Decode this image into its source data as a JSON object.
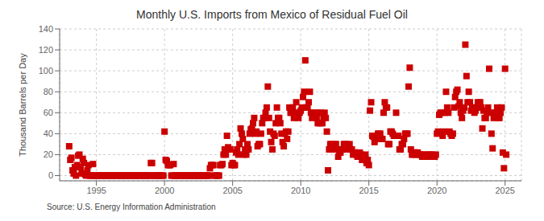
{
  "chart_data": {
    "type": "scatter",
    "title": "Monthly U.S. Imports from Mexico of Residual Fuel Oil",
    "ylabel": "Thousand Barrels per Day",
    "annotations": [
      "Source: U.S. Energy Information Administration"
    ],
    "color": "#cc0000",
    "marker": "square",
    "grid": true,
    "xlim": [
      1992.3,
      2026.2
    ],
    "xticks": [
      1995,
      2000,
      2005,
      2010,
      2015,
      2020,
      2025
    ],
    "ylim": [
      -5,
      140
    ],
    "yticks": [
      0,
      20,
      40,
      60,
      80,
      100,
      120,
      140
    ],
    "x": [
      1993.0,
      1993.083,
      1993.167,
      1993.25,
      1993.333,
      1993.417,
      1993.5,
      1993.583,
      1993.667,
      1993.75,
      1993.833,
      1993.917,
      1994.0,
      1994.083,
      1994.167,
      1994.25,
      1994.333,
      1994.417,
      1994.5,
      1994.583,
      1994.667,
      1994.75,
      1994.833,
      1994.917,
      1995.0,
      1995.083,
      1995.167,
      1995.25,
      1995.333,
      1995.417,
      1995.5,
      1995.583,
      1995.667,
      1995.75,
      1995.833,
      1995.917,
      1996.0,
      1996.083,
      1996.167,
      1996.25,
      1996.333,
      1996.417,
      1996.5,
      1996.583,
      1996.667,
      1996.75,
      1996.833,
      1996.917,
      1997.0,
      1997.083,
      1997.167,
      1997.25,
      1997.333,
      1997.417,
      1997.5,
      1997.583,
      1997.667,
      1997.75,
      1997.833,
      1997.917,
      1998.0,
      1998.083,
      1998.167,
      1998.25,
      1998.333,
      1998.417,
      1998.5,
      1998.583,
      1998.667,
      1998.75,
      1998.833,
      1998.917,
      1999.0,
      1999.083,
      1999.167,
      1999.25,
      1999.333,
      1999.417,
      1999.5,
      1999.583,
      1999.667,
      1999.75,
      1999.833,
      1999.917,
      2000.0,
      2000.083,
      2000.167,
      2000.25,
      2000.333,
      2000.417,
      2000.5,
      2000.583,
      2000.667,
      2000.75,
      2000.833,
      2000.917,
      2001.0,
      2001.083,
      2001.167,
      2001.25,
      2001.333,
      2001.417,
      2001.5,
      2001.583,
      2001.667,
      2001.75,
      2001.833,
      2001.917,
      2002.0,
      2002.083,
      2002.167,
      2002.25,
      2002.333,
      2002.417,
      2002.5,
      2002.583,
      2002.667,
      2002.75,
      2002.833,
      2002.917,
      2003.0,
      2003.083,
      2003.167,
      2003.25,
      2003.333,
      2003.417,
      2003.5,
      2003.583,
      2003.667,
      2003.75,
      2003.833,
      2003.917,
      2004.0,
      2004.083,
      2004.167,
      2004.25,
      2004.333,
      2004.417,
      2004.5,
      2004.583,
      2004.667,
      2004.75,
      2004.833,
      2004.917,
      2005.0,
      2005.083,
      2005.167,
      2005.25,
      2005.333,
      2005.417,
      2005.5,
      2005.583,
      2005.667,
      2005.75,
      2005.833,
      2005.917,
      2006.0,
      2006.083,
      2006.167,
      2006.25,
      2006.333,
      2006.417,
      2006.5,
      2006.583,
      2006.667,
      2006.75,
      2006.833,
      2006.917,
      2007.0,
      2007.083,
      2007.167,
      2007.25,
      2007.333,
      2007.417,
      2007.5,
      2007.583,
      2007.667,
      2007.75,
      2007.833,
      2007.917,
      2008.0,
      2008.083,
      2008.167,
      2008.25,
      2008.333,
      2008.417,
      2008.5,
      2008.583,
      2008.667,
      2008.75,
      2008.833,
      2008.917,
      2009.0,
      2009.083,
      2009.167,
      2009.25,
      2009.333,
      2009.417,
      2009.5,
      2009.583,
      2009.667,
      2009.75,
      2009.833,
      2009.917,
      2010.0,
      2010.083,
      2010.167,
      2010.25,
      2010.333,
      2010.417,
      2010.5,
      2010.583,
      2010.667,
      2010.75,
      2010.833,
      2010.917,
      2011.0,
      2011.083,
      2011.167,
      2011.25,
      2011.333,
      2011.417,
      2011.5,
      2011.583,
      2011.667,
      2011.75,
      2011.833,
      2011.917,
      2012.0,
      2012.083,
      2012.167,
      2012.25,
      2012.333,
      2012.417,
      2012.5,
      2012.583,
      2012.667,
      2012.75,
      2012.833,
      2012.917,
      2013.0,
      2013.083,
      2013.167,
      2013.25,
      2013.333,
      2013.417,
      2013.5,
      2013.583,
      2013.667,
      2013.75,
      2013.833,
      2013.917,
      2014.0,
      2014.083,
      2014.167,
      2014.25,
      2014.333,
      2014.417,
      2014.5,
      2014.583,
      2014.667,
      2014.75,
      2014.833,
      2014.917,
      2015.0,
      2015.083,
      2015.167,
      2015.25,
      2015.333,
      2015.417,
      2015.5,
      2015.583,
      2015.667,
      2015.75,
      2015.833,
      2015.917,
      2016.0,
      2016.083,
      2016.167,
      2016.25,
      2016.333,
      2016.417,
      2016.5,
      2016.583,
      2016.667,
      2016.75,
      2016.833,
      2016.917,
      2017.0,
      2017.083,
      2017.167,
      2017.25,
      2017.333,
      2017.417,
      2017.5,
      2017.583,
      2017.667,
      2017.75,
      2017.833,
      2017.917,
      2018.0,
      2018.083,
      2018.167,
      2018.25,
      2018.333,
      2018.417,
      2018.5,
      2018.583,
      2018.667,
      2018.75,
      2018.833,
      2018.917,
      2019.0,
      2019.083,
      2019.167,
      2019.25,
      2019.333,
      2019.417,
      2019.5,
      2019.583,
      2019.667,
      2019.75,
      2019.833,
      2019.917,
      2020.0,
      2020.083,
      2020.167,
      2020.25,
      2020.333,
      2020.417,
      2020.5,
      2020.583,
      2020.667,
      2020.75,
      2020.833,
      2020.917,
      2021.0,
      2021.083,
      2021.167,
      2021.25,
      2021.333,
      2021.417,
      2021.5,
      2021.583,
      2021.667,
      2021.75,
      2021.833,
      2021.917,
      2022.0,
      2022.083,
      2022.167,
      2022.25,
      2022.333,
      2022.417,
      2022.5,
      2022.583,
      2022.667,
      2022.75,
      2022.833,
      2022.917,
      2023.0,
      2023.083,
      2023.167,
      2023.25,
      2023.333,
      2023.417,
      2023.5,
      2023.583,
      2023.667,
      2023.75,
      2023.833,
      2023.917,
      2024.0,
      2024.083,
      2024.167,
      2024.25,
      2024.333,
      2024.417,
      2024.5,
      2024.583,
      2024.667,
      2024.75,
      2024.833,
      2024.917,
      2025.0,
      2025.083
    ],
    "values": [
      28,
      15,
      17,
      5,
      2,
      8,
      0,
      10,
      19,
      20,
      8,
      2,
      16,
      12,
      1,
      0,
      5,
      10,
      0,
      0,
      0,
      11,
      0,
      0,
      0,
      0,
      0,
      0,
      0,
      0,
      0,
      0,
      0,
      0,
      0,
      0,
      0,
      0,
      0,
      0,
      0,
      0,
      0,
      0,
      0,
      0,
      0,
      0,
      0,
      0,
      0,
      0,
      0,
      0,
      0,
      0,
      0,
      0,
      0,
      0,
      0,
      0,
      0,
      0,
      0,
      0,
      0,
      0,
      0,
      0,
      0,
      0,
      12,
      12,
      0,
      0,
      0,
      0,
      0,
      0,
      0,
      0,
      0,
      0,
      42,
      15,
      14,
      10,
      10,
      10,
      0,
      0,
      11,
      0,
      0,
      0,
      0,
      0,
      0,
      0,
      0,
      0,
      0,
      0,
      0,
      0,
      0,
      0,
      0,
      0,
      0,
      0,
      0,
      0,
      0,
      0,
      0,
      0,
      0,
      0,
      0,
      0,
      0,
      0,
      7,
      10,
      10,
      10,
      0,
      0,
      0,
      0,
      0,
      10,
      10,
      11,
      20,
      25,
      20,
      38,
      27,
      25,
      25,
      10,
      12,
      10,
      10,
      22,
      25,
      20,
      30,
      45,
      40,
      35,
      20,
      25,
      20,
      30,
      25,
      40,
      44,
      45,
      50,
      55,
      40,
      42,
      28,
      30,
      30,
      40,
      50,
      55,
      55,
      60,
      65,
      85,
      55,
      42,
      32,
      25,
      40,
      38,
      50,
      65,
      55,
      55,
      50,
      40,
      32,
      28,
      40,
      42,
      35,
      42,
      65,
      60,
      60,
      65,
      55,
      60,
      70,
      60,
      55,
      60,
      62,
      65,
      75,
      80,
      110,
      65,
      65,
      70,
      80,
      60,
      55,
      60,
      60,
      60,
      55,
      50,
      60,
      50,
      60,
      50,
      55,
      60,
      55,
      42,
      5,
      25,
      30,
      30,
      25,
      28,
      30,
      30,
      25,
      18,
      22,
      22,
      25,
      25,
      30,
      30,
      30,
      25,
      28,
      30,
      25,
      25,
      20,
      22,
      22,
      20,
      18,
      20,
      22,
      20,
      15,
      18,
      18,
      20,
      12,
      15,
      10,
      62,
      70,
      38,
      37,
      32,
      35,
      35,
      40,
      40,
      40,
      35,
      35,
      60,
      70,
      65,
      65,
      30,
      30,
      42,
      42,
      40,
      38,
      38,
      60,
      38,
      38,
      25,
      25,
      30,
      30,
      35,
      40,
      40,
      40,
      85,
      103,
      25,
      20,
      20,
      22,
      22,
      20,
      22,
      20,
      20,
      20,
      18,
      20,
      18,
      18,
      20,
      18,
      20,
      20,
      18,
      20,
      18,
      18,
      20,
      40,
      42,
      58,
      60,
      60,
      38,
      42,
      60,
      80,
      65,
      60,
      42,
      40,
      38,
      40,
      65,
      75,
      80,
      82,
      66,
      70,
      60,
      55,
      62,
      65,
      125,
      95,
      70,
      80,
      70,
      62,
      65,
      65,
      60,
      62,
      65,
      70,
      65,
      70,
      65,
      45,
      62,
      55,
      55,
      60,
      65,
      102,
      60,
      40,
      26,
      55,
      60,
      60,
      65,
      55,
      55,
      60,
      65,
      22,
      7,
      102,
      20
    ]
  }
}
